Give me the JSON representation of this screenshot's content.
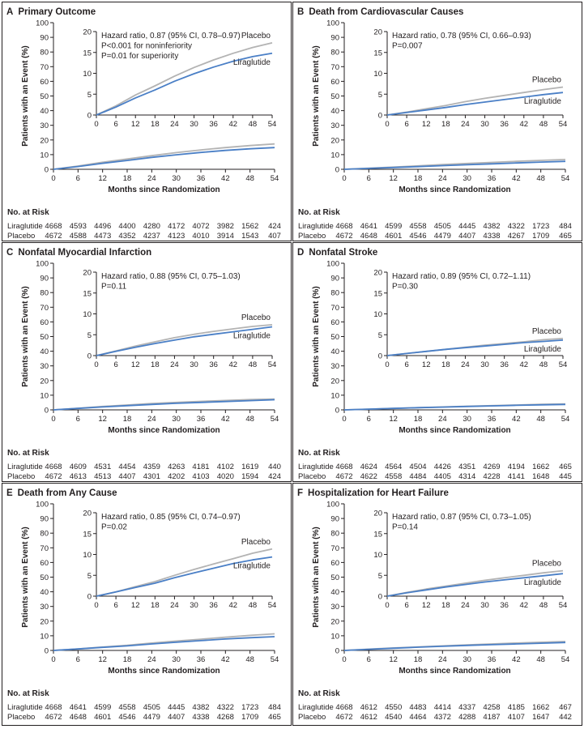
{
  "colors": {
    "liraglutide": "#4a7fc6",
    "placebo": "#b3b3b3",
    "axis": "#231f20",
    "border": "#231f20"
  },
  "chart_data": [
    {
      "type": "line",
      "letter": "A",
      "title": "Primary Outcome",
      "xlabel": "Months since Randomization",
      "ylabel": "Patients with an Event (%)",
      "x_ticks": [
        0,
        6,
        12,
        18,
        24,
        30,
        36,
        42,
        48,
        54
      ],
      "xlim": [
        0,
        54
      ],
      "main_ylim": [
        0,
        100
      ],
      "main_y_ticks": [
        0,
        10,
        20,
        30,
        40,
        50,
        60,
        70,
        80,
        90,
        100
      ],
      "inset_ylim": [
        0,
        20
      ],
      "inset_y_ticks": [
        0,
        5,
        10,
        15,
        20
      ],
      "annotations": [
        "Hazard ratio, 0.87 (95% CI, 0.78–0.97)",
        "P<0.001 for noninferiority",
        "P=0.01 for superiority"
      ],
      "series": [
        {
          "name": "Placebo",
          "x": [
            0,
            6,
            12,
            18,
            24,
            30,
            36,
            42,
            48,
            54
          ],
          "y": [
            0,
            2.2,
            4.8,
            7.0,
            9.3,
            11.4,
            13.2,
            14.8,
            16.2,
            17.3
          ]
        },
        {
          "name": "Liraglutide",
          "x": [
            0,
            6,
            12,
            18,
            24,
            30,
            36,
            42,
            48,
            54
          ],
          "y": [
            0,
            1.9,
            4.1,
            6.0,
            8.1,
            9.9,
            11.5,
            12.9,
            14.0,
            14.8
          ]
        }
      ],
      "risk_header": "No. at Risk",
      "risk_table": [
        {
          "name": "Liraglutide",
          "values": [
            "4668",
            "4593",
            "4496",
            "4400",
            "4280",
            "4172",
            "4072",
            "3982",
            "1562",
            "424"
          ]
        },
        {
          "name": "Placebo",
          "values": [
            "4672",
            "4588",
            "4473",
            "4352",
            "4237",
            "4123",
            "4010",
            "3914",
            "1543",
            "407"
          ]
        }
      ]
    },
    {
      "type": "line",
      "letter": "B",
      "title": "Death from Cardiovascular Causes",
      "xlabel": "Months since Randomization",
      "ylabel": "Patients with an Event (%)",
      "x_ticks": [
        0,
        6,
        12,
        18,
        24,
        30,
        36,
        42,
        48,
        54
      ],
      "xlim": [
        0,
        54
      ],
      "main_ylim": [
        0,
        100
      ],
      "main_y_ticks": [
        0,
        10,
        20,
        30,
        40,
        50,
        60,
        70,
        80,
        90,
        100
      ],
      "inset_ylim": [
        0,
        20
      ],
      "inset_y_ticks": [
        0,
        5,
        10,
        15,
        20
      ],
      "annotations": [
        "Hazard ratio, 0.78 (95% CI, 0.66–0.93)",
        "P=0.007"
      ],
      "series": [
        {
          "name": "Placebo",
          "x": [
            0,
            6,
            12,
            18,
            24,
            30,
            36,
            42,
            48,
            54
          ],
          "y": [
            0,
            0.7,
            1.5,
            2.3,
            3.2,
            4.0,
            4.7,
            5.4,
            6.1,
            6.7
          ]
        },
        {
          "name": "Liraglutide",
          "x": [
            0,
            6,
            12,
            18,
            24,
            30,
            36,
            42,
            48,
            54
          ],
          "y": [
            0,
            0.6,
            1.2,
            1.8,
            2.5,
            3.1,
            3.7,
            4.3,
            4.9,
            5.4
          ]
        }
      ],
      "risk_header": "No. at Risk",
      "risk_table": [
        {
          "name": "Liraglutide",
          "values": [
            "4668",
            "4641",
            "4599",
            "4558",
            "4505",
            "4445",
            "4382",
            "4322",
            "1723",
            "484"
          ]
        },
        {
          "name": "Placebo",
          "values": [
            "4672",
            "4648",
            "4601",
            "4546",
            "4479",
            "4407",
            "4338",
            "4267",
            "1709",
            "465"
          ]
        }
      ]
    },
    {
      "type": "line",
      "letter": "C",
      "title": "Nonfatal Myocardial Infarction",
      "xlabel": "Months since Randomization",
      "ylabel": "Patients with an Event (%)",
      "x_ticks": [
        0,
        6,
        12,
        18,
        24,
        30,
        36,
        42,
        48,
        54
      ],
      "xlim": [
        0,
        54
      ],
      "main_ylim": [
        0,
        100
      ],
      "main_y_ticks": [
        0,
        10,
        20,
        30,
        40,
        50,
        60,
        70,
        80,
        90,
        100
      ],
      "inset_ylim": [
        0,
        20
      ],
      "inset_y_ticks": [
        0,
        5,
        10,
        15,
        20
      ],
      "annotations": [
        "Hazard ratio, 0.88 (95% CI, 0.75–1.03)",
        "P=0.11"
      ],
      "series": [
        {
          "name": "Placebo",
          "x": [
            0,
            6,
            12,
            18,
            24,
            30,
            36,
            42,
            48,
            54
          ],
          "y": [
            0,
            1.1,
            2.3,
            3.3,
            4.3,
            5.1,
            5.8,
            6.4,
            7.0,
            7.4
          ]
        },
        {
          "name": "Liraglutide",
          "x": [
            0,
            6,
            12,
            18,
            24,
            30,
            36,
            42,
            48,
            54
          ],
          "y": [
            0,
            1.0,
            2.0,
            2.9,
            3.7,
            4.5,
            5.1,
            5.7,
            6.3,
            6.9
          ]
        }
      ],
      "risk_header": "No. at Risk",
      "risk_table": [
        {
          "name": "Liraglutide",
          "values": [
            "4668",
            "4609",
            "4531",
            "4454",
            "4359",
            "4263",
            "4181",
            "4102",
            "1619",
            "440"
          ]
        },
        {
          "name": "Placebo",
          "values": [
            "4672",
            "4613",
            "4513",
            "4407",
            "4301",
            "4202",
            "4103",
            "4020",
            "1594",
            "424"
          ]
        }
      ]
    },
    {
      "type": "line",
      "letter": "D",
      "title": "Nonfatal Stroke",
      "xlabel": "Months since Randomization",
      "ylabel": "Patients with an Event (%)",
      "x_ticks": [
        0,
        6,
        12,
        18,
        24,
        30,
        36,
        42,
        48,
        54
      ],
      "xlim": [
        0,
        54
      ],
      "main_ylim": [
        0,
        100
      ],
      "main_y_ticks": [
        0,
        10,
        20,
        30,
        40,
        50,
        60,
        70,
        80,
        90,
        100
      ],
      "inset_ylim": [
        0,
        20
      ],
      "inset_y_ticks": [
        0,
        5,
        10,
        15,
        20
      ],
      "annotations": [
        "Hazard ratio, 0.89 (95% CI, 0.72–1.11)",
        "P=0.30"
      ],
      "series": [
        {
          "name": "Placebo",
          "x": [
            0,
            6,
            12,
            18,
            24,
            30,
            36,
            42,
            48,
            54
          ],
          "y": [
            0,
            0.5,
            1.0,
            1.5,
            2.0,
            2.5,
            2.9,
            3.3,
            3.8,
            4.1
          ]
        },
        {
          "name": "Liraglutide",
          "x": [
            0,
            6,
            12,
            18,
            24,
            30,
            36,
            42,
            48,
            54
          ],
          "y": [
            0,
            0.5,
            1.0,
            1.5,
            1.9,
            2.3,
            2.7,
            3.1,
            3.4,
            3.7
          ]
        }
      ],
      "risk_header": "No. at Risk",
      "risk_table": [
        {
          "name": "Liraglutide",
          "values": [
            "4668",
            "4624",
            "4564",
            "4504",
            "4426",
            "4351",
            "4269",
            "4194",
            "1662",
            "465"
          ]
        },
        {
          "name": "Placebo",
          "values": [
            "4672",
            "4622",
            "4558",
            "4484",
            "4405",
            "4314",
            "4228",
            "4141",
            "1648",
            "445"
          ]
        }
      ]
    },
    {
      "type": "line",
      "letter": "E",
      "title": "Death from Any Cause",
      "xlabel": "Months since Randomization",
      "ylabel": "Patients with an Event (%)",
      "x_ticks": [
        0,
        6,
        12,
        18,
        24,
        30,
        36,
        42,
        48,
        54
      ],
      "xlim": [
        0,
        54
      ],
      "main_ylim": [
        0,
        100
      ],
      "main_y_ticks": [
        0,
        10,
        20,
        30,
        40,
        50,
        60,
        70,
        80,
        90,
        100
      ],
      "inset_ylim": [
        0,
        20
      ],
      "inset_y_ticks": [
        0,
        5,
        10,
        15,
        20
      ],
      "annotations": [
        "Hazard ratio, 0.85 (95% CI, 0.74–0.97)",
        "P=0.02"
      ],
      "series": [
        {
          "name": "Placebo",
          "x": [
            0,
            6,
            12,
            18,
            24,
            30,
            36,
            42,
            48,
            54
          ],
          "y": [
            0,
            1.0,
            2.3,
            3.5,
            5.0,
            6.4,
            7.7,
            9.0,
            10.3,
            11.3
          ]
        },
        {
          "name": "Liraglutide",
          "x": [
            0,
            6,
            12,
            18,
            24,
            30,
            36,
            42,
            48,
            54
          ],
          "y": [
            0,
            1.0,
            2.1,
            3.1,
            4.4,
            5.6,
            6.7,
            7.8,
            8.7,
            9.4
          ]
        }
      ],
      "risk_header": "No. at Risk",
      "risk_table": [
        {
          "name": "Liraglutide",
          "values": [
            "4668",
            "4641",
            "4599",
            "4558",
            "4505",
            "4445",
            "4382",
            "4322",
            "1723",
            "484"
          ]
        },
        {
          "name": "Placebo",
          "values": [
            "4672",
            "4648",
            "4601",
            "4546",
            "4479",
            "4407",
            "4338",
            "4268",
            "1709",
            "465"
          ]
        }
      ]
    },
    {
      "type": "line",
      "letter": "F",
      "title": "Hospitalization for Heart Failure",
      "xlabel": "Months since Randomization",
      "ylabel": "Patients with an Event (%)",
      "x_ticks": [
        0,
        6,
        12,
        18,
        24,
        30,
        36,
        42,
        48,
        54
      ],
      "xlim": [
        0,
        54
      ],
      "main_ylim": [
        0,
        100
      ],
      "main_y_ticks": [
        0,
        10,
        20,
        30,
        40,
        50,
        60,
        70,
        80,
        90,
        100
      ],
      "inset_ylim": [
        0,
        20
      ],
      "inset_y_ticks": [
        0,
        5,
        10,
        15,
        20
      ],
      "annotations": [
        "Hazard ratio, 0.87 (95% CI, 0.73–1.05)",
        "P=0.14"
      ],
      "series": [
        {
          "name": "Placebo",
          "x": [
            0,
            6,
            12,
            18,
            24,
            30,
            36,
            42,
            48,
            54
          ],
          "y": [
            0,
            0.9,
            1.7,
            2.4,
            3.1,
            3.8,
            4.4,
            5.0,
            5.6,
            6.1
          ]
        },
        {
          "name": "Liraglutide",
          "x": [
            0,
            6,
            12,
            18,
            24,
            30,
            36,
            42,
            48,
            54
          ],
          "y": [
            0,
            0.8,
            1.5,
            2.2,
            2.8,
            3.4,
            3.9,
            4.4,
            4.9,
            5.4
          ]
        }
      ],
      "risk_header": "No. at Risk",
      "risk_table": [
        {
          "name": "Liraglutide",
          "values": [
            "4668",
            "4612",
            "4550",
            "4483",
            "4414",
            "4337",
            "4258",
            "4185",
            "1662",
            "467"
          ]
        },
        {
          "name": "Placebo",
          "values": [
            "4672",
            "4612",
            "4540",
            "4464",
            "4372",
            "4288",
            "4187",
            "4107",
            "1647",
            "442"
          ]
        }
      ]
    }
  ]
}
